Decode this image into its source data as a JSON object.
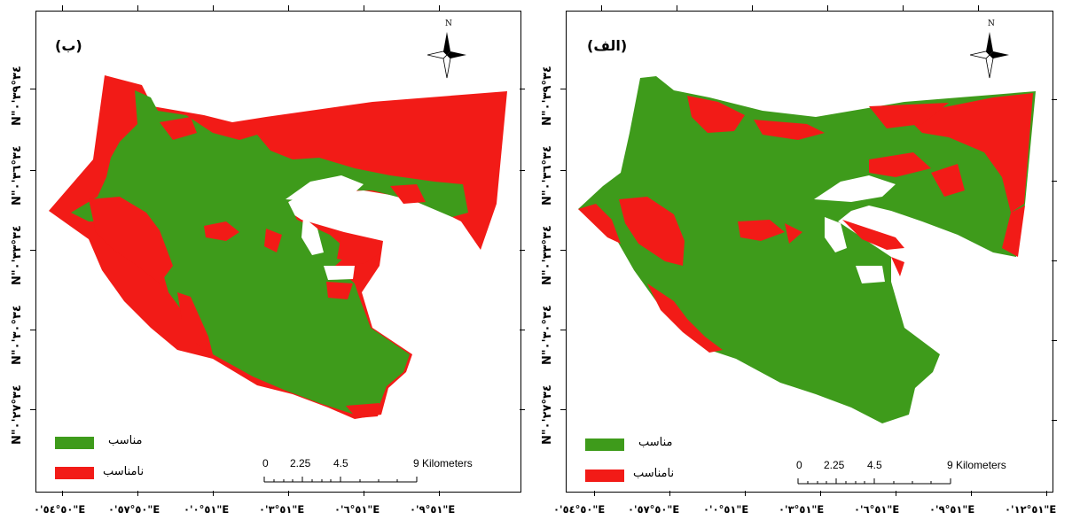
{
  "colors": {
    "suitable": "#3e9b1b",
    "unsuitable": "#f21b17"
  },
  "panels": [
    {
      "id": "left",
      "label": "(ب)",
      "north": "N",
      "y_labels": [
        "N\"٣٤°٣٩'٠",
        "N\"٣٤°٣٦'٠",
        "N\"٣٤°٣٣'٠",
        "N\"٣٤°٣٠'٠",
        "N\"٣٤°٢٧'٠"
      ],
      "x_labels": [
        "٥٠°٥٤'٠\"E",
        "٥٠°٥٧'٠\"E",
        "٥١°٠'٠\"E",
        "٥١°٣'٠\"E",
        "٥١°٦'٠\"E",
        "٥١°٩'٠\"E"
      ],
      "legend": [
        {
          "label": "مناسب",
          "color": "#3e9b1b"
        },
        {
          "label": "نامناسب",
          "color": "#f21b17"
        }
      ],
      "scale": {
        "n0": "0",
        "n1": "2.25",
        "n2": "4.5",
        "n3": "9 Kilometers"
      }
    },
    {
      "id": "right",
      "label": "(الف)",
      "north": "N",
      "y_labels": [
        "N\"٣٤°٣٩'٠",
        "N\"٣٤°٣٦'٠",
        "N\"٣٤°٣٣'٠",
        "N\"٣٤°٣٠'٠",
        "N\"٣٤°٢٧'٠"
      ],
      "x_labels": [
        "٥٠°٥٤'٠\"E",
        "٥٠°٥٧'٠\"E",
        "٥١°٠'٠\"E",
        "٥١°٣'٠\"E",
        "٥١°٦'٠\"E",
        "٥١°٩'٠\"E",
        "٥١°١٢'٠\"E"
      ],
      "legend": [
        {
          "label": "مناسب",
          "color": "#3e9b1b"
        },
        {
          "label": "نامناسب",
          "color": "#f21b17"
        }
      ],
      "scale": {
        "n0": "0",
        "n1": "2.25",
        "n2": "4.5",
        "n3": "9 Kilometers"
      }
    }
  ]
}
